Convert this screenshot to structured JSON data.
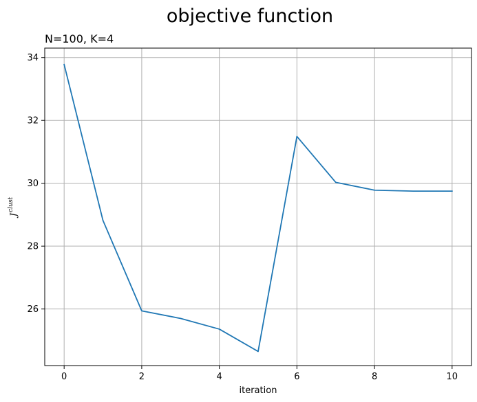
{
  "figure": {
    "suptitle": "objective function"
  },
  "chart_data": {
    "type": "line",
    "title": "N=100, K=4",
    "xlabel": "iteration",
    "ylabel_base": "J",
    "ylabel_superscript": "clust",
    "xlim": [
      -0.5,
      10.5
    ],
    "ylim": [
      24.2,
      34.3
    ],
    "xticks": [
      0,
      2,
      4,
      6,
      8,
      10
    ],
    "yticks": [
      26,
      28,
      30,
      32,
      34
    ],
    "grid": true,
    "colors": {
      "line": "#1f77b4"
    },
    "series": [
      {
        "x": [
          0,
          1,
          2,
          3,
          4,
          5,
          6,
          7,
          8,
          9,
          10
        ],
        "values": [
          33.78,
          28.82,
          25.94,
          25.7,
          25.36,
          24.65,
          31.49,
          30.03,
          29.78,
          29.75,
          29.75
        ]
      }
    ]
  }
}
